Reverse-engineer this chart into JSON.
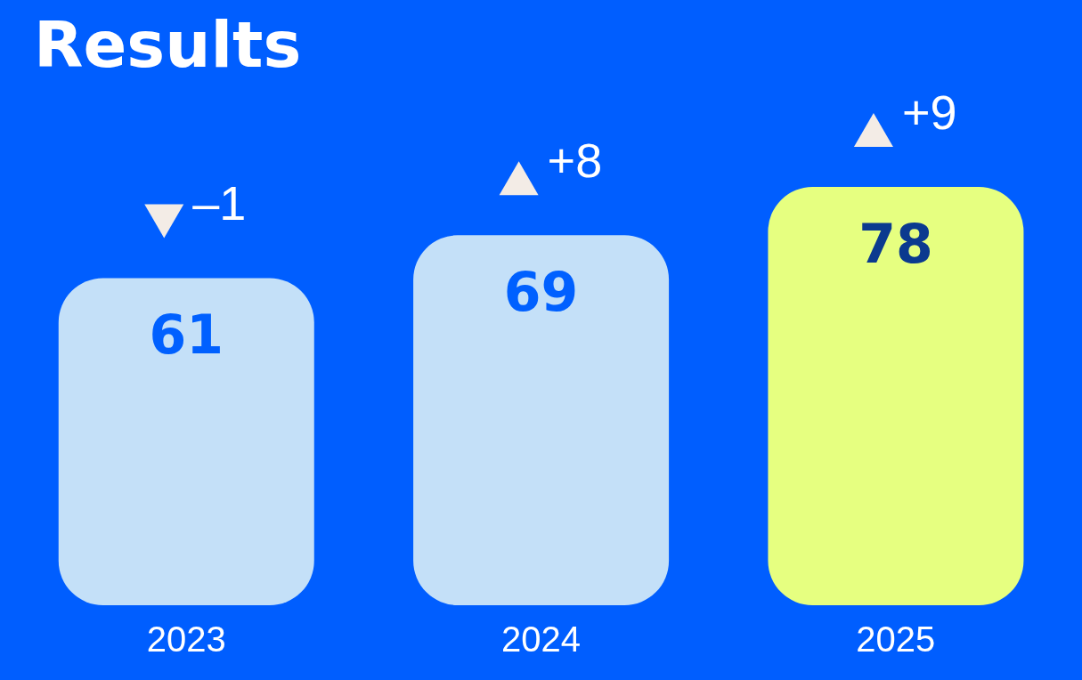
{
  "chart_data": {
    "type": "bar",
    "title": "Results",
    "categories": [
      "2023",
      "2024",
      "2025"
    ],
    "values": [
      61,
      69,
      78
    ],
    "colors": [
      "#c4e0f8",
      "#c4e0f8",
      "#e6ff80"
    ],
    "data_labels": true,
    "annotations": [
      "–1",
      "+8",
      "+9"
    ]
  }
}
